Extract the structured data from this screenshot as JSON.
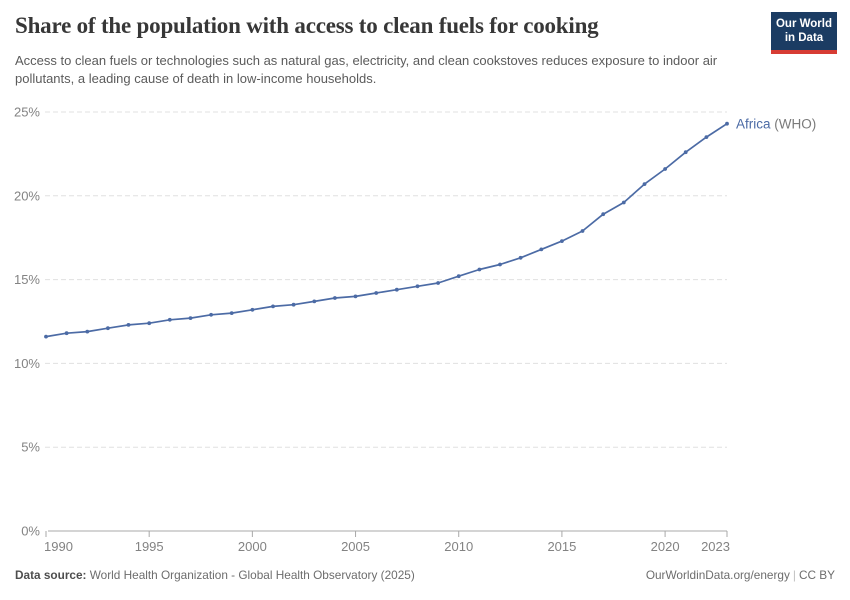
{
  "header": {
    "title": "Share of the population with access to clean fuels for cooking",
    "subtitle": "Access to clean fuels or technologies such as natural gas, electricity, and clean cookstoves reduces exposure to indoor air pollutants, a leading cause of death in low-income households.",
    "logo": {
      "line1": "Our World",
      "line2": "in Data",
      "bg_color": "#1b3c63",
      "bar_color": "#d73c34"
    }
  },
  "chart_data": {
    "type": "line",
    "title": "Share of the population with access to clean fuels for cooking",
    "xlabel": "",
    "ylabel": "",
    "xlim": [
      1990,
      2023
    ],
    "ylim": [
      0,
      25
    ],
    "grid": "horizontal-dashed",
    "legend_position": "end-of-line-label",
    "x_ticks": [
      1990,
      1995,
      2000,
      2005,
      2010,
      2015,
      2020,
      2023
    ],
    "y_ticks": [
      {
        "value": 0,
        "label": "0%"
      },
      {
        "value": 5,
        "label": "5%"
      },
      {
        "value": 10,
        "label": "10%"
      },
      {
        "value": 15,
        "label": "15%"
      },
      {
        "value": 20,
        "label": "20%"
      },
      {
        "value": 25,
        "label": "25%"
      }
    ],
    "series": [
      {
        "name": "Africa (WHO)",
        "entity": "Africa",
        "suffix": " (WHO)",
        "color": "#4c6ba5",
        "x": [
          1990,
          1991,
          1992,
          1993,
          1994,
          1995,
          1996,
          1997,
          1998,
          1999,
          2000,
          2001,
          2002,
          2003,
          2004,
          2005,
          2006,
          2007,
          2008,
          2009,
          2010,
          2011,
          2012,
          2013,
          2014,
          2015,
          2016,
          2017,
          2018,
          2019,
          2020,
          2021,
          2022,
          2023
        ],
        "values": [
          11.6,
          11.8,
          11.9,
          12.1,
          12.3,
          12.4,
          12.6,
          12.7,
          12.9,
          13.0,
          13.2,
          13.4,
          13.5,
          13.7,
          13.9,
          14.0,
          14.2,
          14.4,
          14.6,
          14.8,
          15.2,
          15.6,
          15.9,
          16.3,
          16.8,
          17.3,
          17.9,
          18.9,
          19.6,
          20.7,
          21.6,
          22.6,
          23.5,
          24.3
        ]
      }
    ],
    "colors": {
      "grid": "#e0e0e0",
      "axis": "#a8a8a8",
      "tick_text": "#838383",
      "suffix_text": "#7a7a7a"
    }
  },
  "footer": {
    "source_label": "Data source:",
    "source_text": " World Health Organization - Global Health Observatory (2025)",
    "right_link": "OurWorldinData.org/energy",
    "separator": "|",
    "license": "CC BY"
  }
}
